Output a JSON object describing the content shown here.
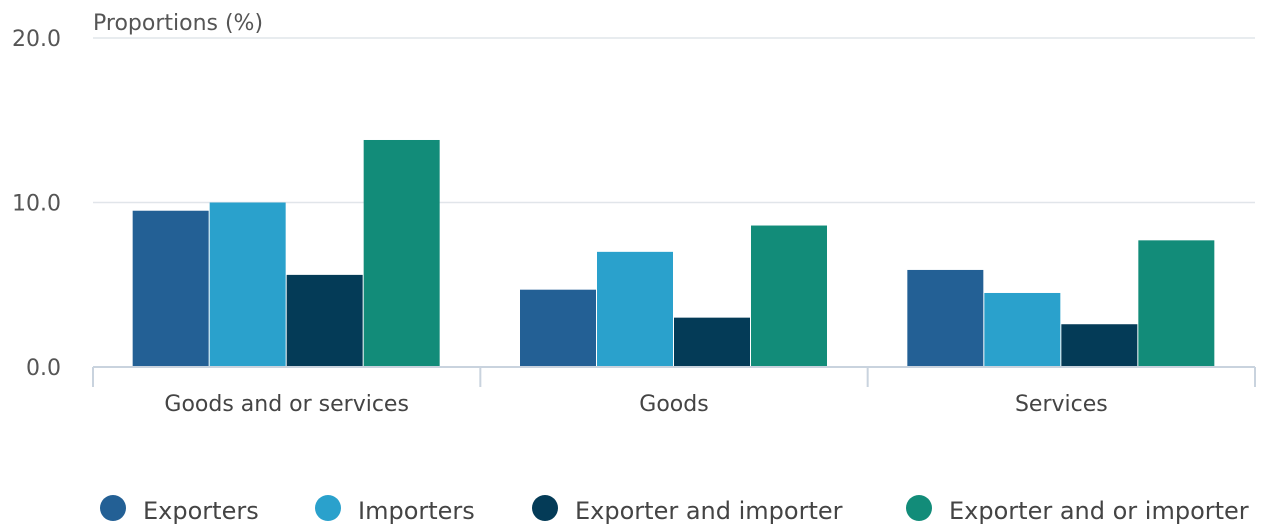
{
  "chart_data": {
    "type": "bar",
    "ylabel": "Proportions (%)",
    "ylim": [
      0,
      20
    ],
    "yticks": [
      "0.0",
      "10.0",
      "20.0"
    ],
    "yticks_values": [
      0,
      10,
      20
    ],
    "categories": [
      "Goods and or services",
      "Goods",
      "Services"
    ],
    "series": [
      {
        "name": "Exporters",
        "color": "#236095",
        "values": [
          9.5,
          4.7,
          5.9
        ]
      },
      {
        "name": "Importers",
        "color": "#2aa1cc",
        "values": [
          10.0,
          7.0,
          4.5
        ]
      },
      {
        "name": "Exporter and importer",
        "color": "#043b57",
        "values": [
          5.6,
          3.0,
          2.6
        ]
      },
      {
        "name": "Exporter and or importer",
        "color": "#128c79",
        "values": [
          13.8,
          8.6,
          7.7
        ]
      }
    ],
    "grid": true,
    "legend": "bottom"
  }
}
